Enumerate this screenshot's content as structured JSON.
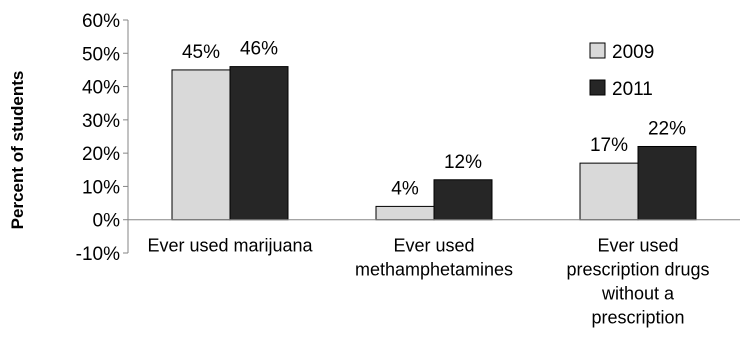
{
  "chart_data": {
    "type": "bar",
    "ylabel": "Percent of students",
    "ylim": [
      -10,
      60
    ],
    "yticks": [
      60,
      50,
      40,
      30,
      20,
      10,
      0,
      -10
    ],
    "ytick_labels": [
      "60%",
      "50%",
      "40%",
      "30%",
      "20%",
      "10%",
      "0%",
      "-10%"
    ],
    "categories": [
      [
        "Ever used marijuana"
      ],
      [
        "Ever used",
        "methamphetamines"
      ],
      [
        "Ever used",
        "prescription drugs",
        "without a",
        "prescription"
      ]
    ],
    "series": [
      {
        "name": "2009",
        "values": [
          45,
          4,
          17
        ],
        "labels": [
          "45%",
          "4%",
          "17%"
        ],
        "color": "#d9d9d9"
      },
      {
        "name": "2011",
        "values": [
          46,
          12,
          22
        ],
        "labels": [
          "46%",
          "12%",
          "22%"
        ],
        "color": "#262626"
      }
    ],
    "legend_position": "top-right",
    "grid": false
  }
}
